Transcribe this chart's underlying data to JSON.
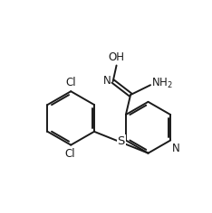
{
  "bg_color": "#ffffff",
  "line_color": "#1a1a1a",
  "line_width": 1.4,
  "font_size": 8.5,
  "xlim": [
    0,
    10
  ],
  "ylim": [
    0,
    10
  ]
}
